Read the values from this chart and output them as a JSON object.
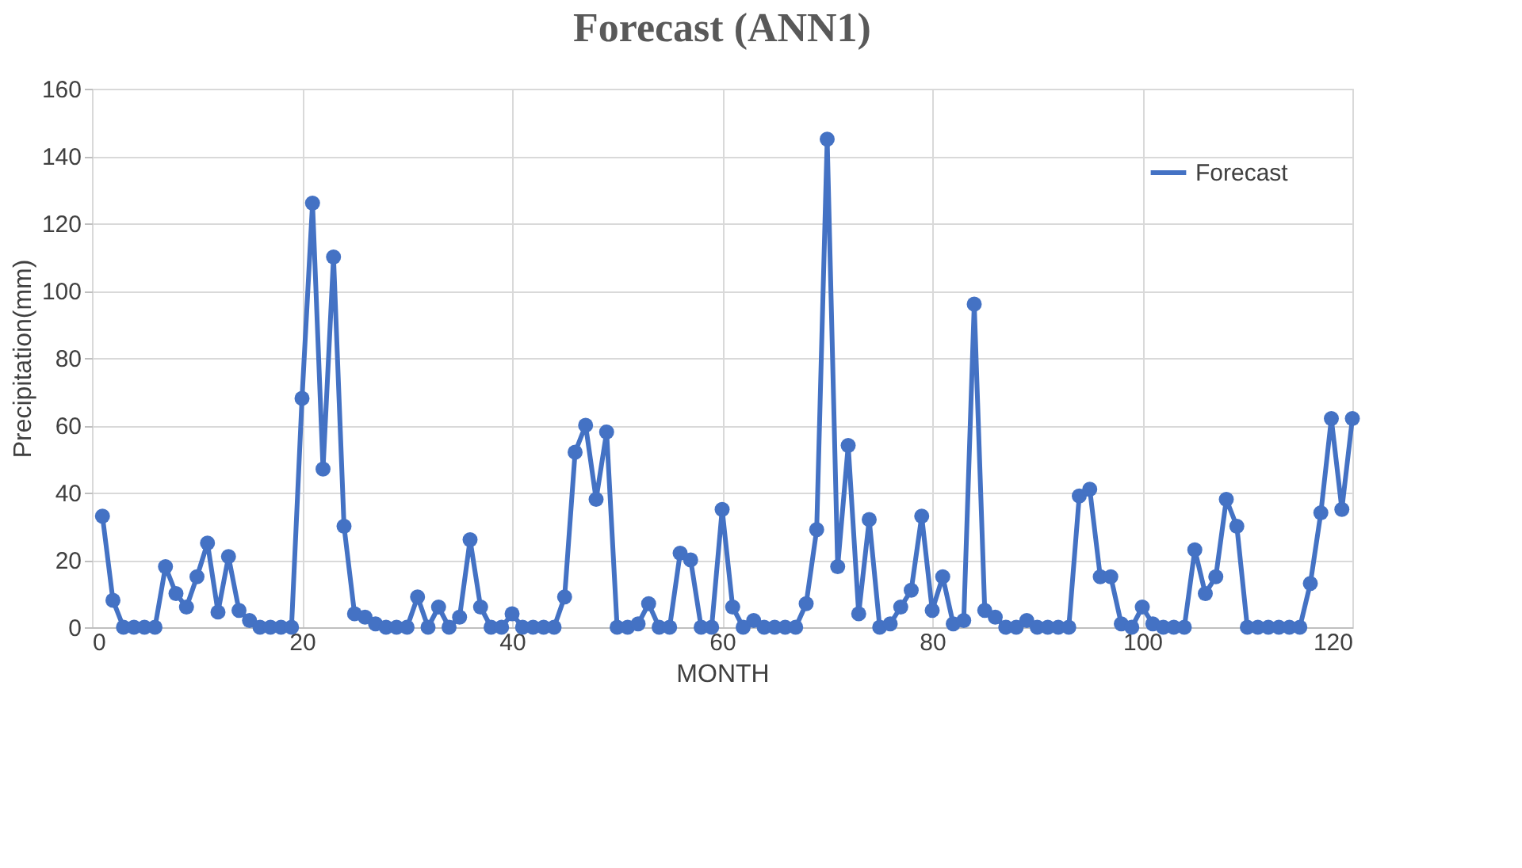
{
  "chart_data": {
    "type": "line",
    "title": "Forecast (ANN1)",
    "xlabel": "MONTH",
    "ylabel": "Precipitation(mm)",
    "x": [
      1,
      2,
      3,
      4,
      5,
      6,
      7,
      8,
      9,
      10,
      11,
      12,
      13,
      14,
      15,
      16,
      17,
      18,
      19,
      20,
      21,
      22,
      23,
      24,
      25,
      26,
      27,
      28,
      29,
      30,
      31,
      32,
      33,
      34,
      35,
      36,
      37,
      38,
      39,
      40,
      41,
      42,
      43,
      44,
      45,
      46,
      47,
      48,
      49,
      50,
      51,
      52,
      53,
      54,
      55,
      56,
      57,
      58,
      59,
      60,
      61,
      62,
      63,
      64,
      65,
      66,
      67,
      68,
      69,
      70,
      71,
      72,
      73,
      74,
      75,
      76,
      77,
      78,
      79,
      80,
      81,
      82,
      83,
      84,
      85,
      86,
      87,
      88,
      89,
      90,
      91,
      92,
      93,
      94,
      95,
      96,
      97,
      98,
      99,
      100,
      101,
      102,
      103,
      104,
      105,
      106,
      107,
      108,
      109,
      110,
      111,
      112,
      113,
      114,
      115,
      116,
      117,
      118,
      119,
      120
    ],
    "series": [
      {
        "name": "Forecast",
        "color": "#4472c4",
        "values": [
          33,
          8,
          0,
          0,
          0,
          0,
          18,
          10,
          6,
          15,
          25,
          4.5,
          21,
          5,
          2,
          0,
          0,
          0,
          0,
          68,
          126,
          47,
          110,
          30,
          4,
          3,
          1,
          0,
          0,
          0,
          9,
          0,
          6,
          0,
          3,
          26,
          6,
          0,
          0,
          4,
          0,
          0,
          0,
          0,
          9,
          52,
          60,
          38,
          58,
          0,
          0,
          1,
          7,
          0,
          0,
          22,
          20,
          0,
          0,
          35,
          6,
          0,
          2,
          0,
          0,
          0,
          0,
          7,
          29,
          145,
          18,
          54,
          4,
          32,
          0,
          1,
          6,
          11,
          33,
          5,
          15,
          1,
          2,
          96,
          5,
          3,
          0,
          0,
          2,
          0,
          0,
          0,
          0,
          39,
          41,
          15,
          15,
          1,
          0,
          6,
          1,
          0,
          0,
          0,
          23,
          10,
          15,
          38,
          30,
          0,
          0,
          0,
          0,
          0,
          0,
          13,
          34,
          62,
          35,
          62
        ]
      }
    ],
    "xlim": [
      0,
      120
    ],
    "xticks": [
      0,
      20,
      40,
      60,
      80,
      100,
      120
    ],
    "ylim": [
      0,
      160
    ],
    "yticks": [
      0,
      20,
      40,
      60,
      80,
      100,
      120,
      140,
      160
    ],
    "grid": true,
    "legend": "top right",
    "marker": "circle",
    "line_style": "solid"
  }
}
